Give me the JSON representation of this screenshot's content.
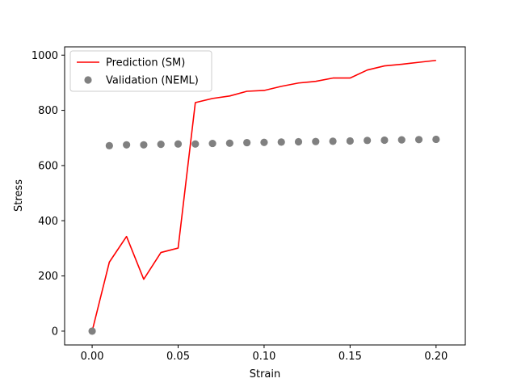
{
  "chart_data": {
    "type": "line",
    "title": "",
    "xlabel": "Strain",
    "ylabel": "Stress",
    "xlim": [
      -0.016,
      0.217
    ],
    "ylim": [
      -50,
      1030
    ],
    "xticks": [
      0.0,
      0.05,
      0.1,
      0.15,
      0.2
    ],
    "xtick_labels": [
      "0.00",
      "0.05",
      "0.10",
      "0.15",
      "0.20"
    ],
    "yticks": [
      0,
      200,
      400,
      600,
      800,
      1000
    ],
    "ytick_labels": [
      "0",
      "200",
      "400",
      "600",
      "800",
      "1000"
    ],
    "grid": false,
    "legend_position": "upper-left",
    "series": [
      {
        "name": "Prediction (SM)",
        "kind": "line",
        "color": "#ff0000",
        "x": [
          0.0,
          0.01,
          0.02,
          0.03,
          0.04,
          0.05,
          0.06,
          0.07,
          0.08,
          0.09,
          0.1,
          0.11,
          0.12,
          0.13,
          0.14,
          0.15,
          0.16,
          0.17,
          0.18,
          0.19,
          0.2
        ],
        "y": [
          0,
          250,
          343,
          188,
          285,
          301,
          828,
          843,
          852,
          869,
          872,
          887,
          899,
          905,
          917,
          917,
          946,
          961,
          967,
          974,
          981
        ]
      },
      {
        "name": "Validation (NEML)",
        "kind": "scatter",
        "color": "#808080",
        "x": [
          0.0,
          0.01,
          0.02,
          0.03,
          0.04,
          0.05,
          0.06,
          0.07,
          0.08,
          0.09,
          0.1,
          0.11,
          0.12,
          0.13,
          0.14,
          0.15,
          0.16,
          0.17,
          0.18,
          0.19,
          0.2
        ],
        "y": [
          0,
          672,
          675,
          675,
          677,
          678,
          678,
          680,
          681,
          683,
          684,
          685,
          686,
          687,
          688,
          689,
          691,
          692,
          693,
          694,
          695
        ]
      }
    ]
  }
}
